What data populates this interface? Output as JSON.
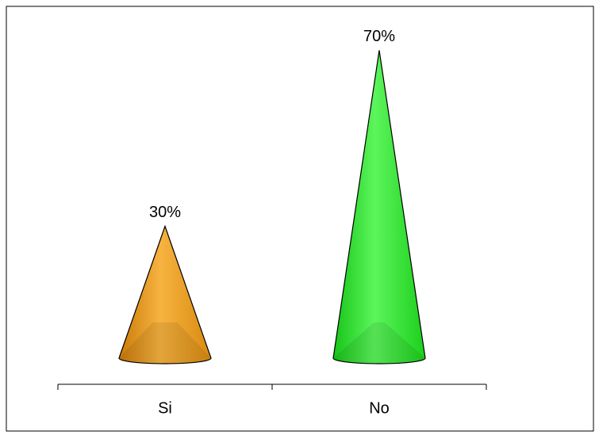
{
  "chart_data": {
    "type": "cone",
    "categories": [
      "Si",
      "No"
    ],
    "values": [
      30,
      70
    ],
    "value_labels": [
      "30%",
      "70%"
    ],
    "colors": [
      "#f2a024",
      "#2fea2f"
    ]
  }
}
